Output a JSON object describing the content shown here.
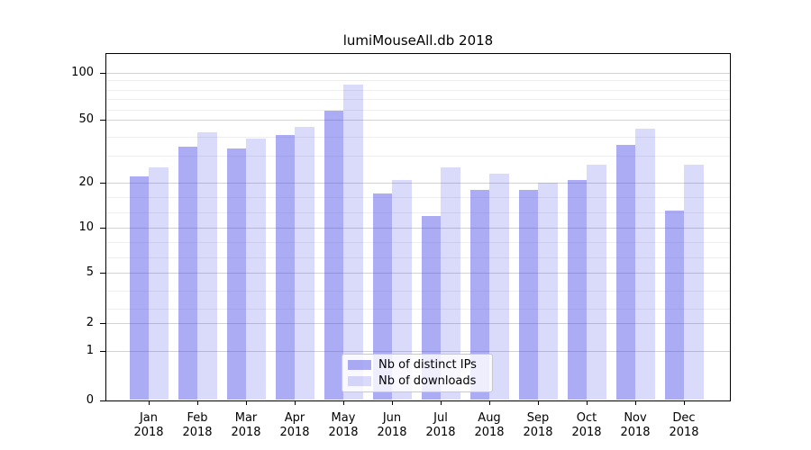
{
  "chart_data": {
    "type": "bar",
    "title": "lumiMouseAll.db 2018",
    "categories": [
      "Jan 2018",
      "Feb 2018",
      "Mar 2018",
      "Apr 2018",
      "May 2018",
      "Jun 2018",
      "Jul 2018",
      "Aug 2018",
      "Sep 2018",
      "Oct 2018",
      "Nov 2018",
      "Dec 2018"
    ],
    "xtick_line1": [
      "Jan",
      "Feb",
      "Mar",
      "Apr",
      "May",
      "Jun",
      "Jul",
      "Aug",
      "Sep",
      "Oct",
      "Nov",
      "Dec"
    ],
    "xtick_line2": "2018",
    "series": [
      {
        "name": "Nb of distinct IPs",
        "color": "rgba(70,70,230,0.45)",
        "values": [
          22,
          34,
          33,
          40,
          57,
          17,
          12,
          18,
          18,
          21,
          35,
          13
        ]
      },
      {
        "name": "Nb of downloads",
        "color": "rgba(70,70,230,0.2)",
        "values": [
          25,
          42,
          38,
          45,
          84,
          21,
          25,
          23,
          20,
          26,
          44,
          26
        ]
      }
    ],
    "yscale": "log-like with zero baseline",
    "yticks": [
      100,
      50,
      20,
      10,
      5,
      2,
      1,
      0
    ],
    "ytick_labels": [
      "100",
      "50",
      "20",
      "10",
      "5",
      "2",
      "1",
      "0"
    ],
    "ylim": [
      0,
      130
    ],
    "grid": "horizontal major + minor",
    "legend": {
      "position": "lower center",
      "entries": [
        "Nb of distinct IPs",
        "Nb of downloads"
      ]
    }
  },
  "colors": {
    "bar_dark": "rgba(70,70,230,0.45)",
    "bar_light": "rgba(70,70,230,0.2)",
    "grid_major": "#d2d2d2",
    "grid_minor": "#eeeeee",
    "axis": "#000000",
    "background": "#ffffff"
  }
}
